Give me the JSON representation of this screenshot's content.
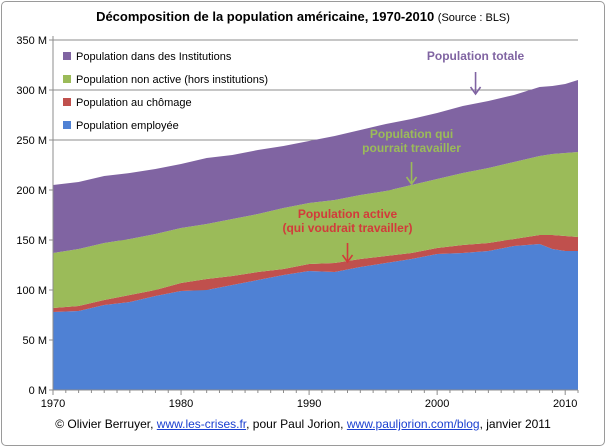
{
  "chart_data": {
    "type": "area",
    "title": "Décomposition de la population américaine, 1970-2010",
    "source_label": "(Source : BLS)",
    "x_ticks": [
      1970,
      1980,
      1990,
      2000,
      2010
    ],
    "y_ticks": [
      {
        "value": 0,
        "label": "0 M"
      },
      {
        "value": 50,
        "label": "50 M"
      },
      {
        "value": 100,
        "label": "100 M"
      },
      {
        "value": 150,
        "label": "150 M"
      },
      {
        "value": 200,
        "label": "200 M"
      },
      {
        "value": 250,
        "label": "250 M"
      },
      {
        "value": 300,
        "label": "300 M"
      },
      {
        "value": 350,
        "label": "350 M"
      }
    ],
    "xlim": [
      1970,
      2011
    ],
    "ylim": [
      0,
      350
    ],
    "grid": true,
    "legend_position": "top-left",
    "x": [
      1970,
      1972,
      1974,
      1976,
      1978,
      1980,
      1982,
      1984,
      1986,
      1988,
      1990,
      1992,
      1994,
      1996,
      1998,
      2000,
      2002,
      2004,
      2006,
      2008,
      2009,
      2010,
      2011
    ],
    "series": [
      {
        "name": "Population employée",
        "color": "#4f81d4",
        "values": [
          78,
          79,
          85,
          88,
          94,
          99,
          100,
          105,
          110,
          115,
          119,
          118,
          123,
          127,
          131,
          136,
          137,
          139,
          144,
          146,
          141,
          139,
          139
        ]
      },
      {
        "name": "Population au chômage",
        "color": "#c0504d",
        "values": [
          4,
          5,
          5,
          7,
          6,
          8,
          11,
          9,
          8,
          6,
          7,
          9,
          8,
          7,
          6,
          6,
          8,
          8,
          7,
          9,
          14,
          15,
          14
        ]
      },
      {
        "name": "Population non active (hors institutions)",
        "color": "#9bbb59",
        "values": [
          55,
          57,
          57,
          56,
          56,
          55,
          55,
          57,
          58,
          61,
          61,
          63,
          64,
          65,
          68,
          69,
          72,
          75,
          77,
          79,
          81,
          83,
          85
        ]
      },
      {
        "name": "Population dans des Institutions",
        "color": "#8064a2",
        "values": [
          68,
          67,
          67,
          66,
          65,
          64,
          66,
          64,
          64,
          62,
          62,
          64,
          65,
          67,
          66,
          66,
          67,
          67,
          67,
          69,
          68,
          69,
          72
        ]
      }
    ],
    "annotations": [
      {
        "lines": [
          "Population  totale"
        ],
        "color": "#8064a2",
        "label_x": 2003,
        "label_y": 330,
        "arrow_x": 2003,
        "arrow_from_y": 318,
        "arrow_to_y": 296
      },
      {
        "lines": [
          "Population  qui",
          "pourrait  travailler"
        ],
        "color": "#9bbb59",
        "label_x": 1998,
        "label_y": 252,
        "arrow_x": 1998,
        "arrow_from_y": 228,
        "arrow_to_y": 206
      },
      {
        "lines": [
          "Population  active",
          "(qui voudrait travailler)"
        ],
        "color": "#d23b3b",
        "label_x": 1993,
        "label_y": 172,
        "arrow_x": 1993,
        "arrow_from_y": 147,
        "arrow_to_y": 128
      }
    ]
  },
  "footer": {
    "prefix": "© Olivier Berruyer,",
    "link1": "www.les-crises.fr",
    "middle": ", pour Paul Jorion,",
    "link2": "www.pauljorion.com/blog",
    "suffix": ", janvier 2011"
  }
}
